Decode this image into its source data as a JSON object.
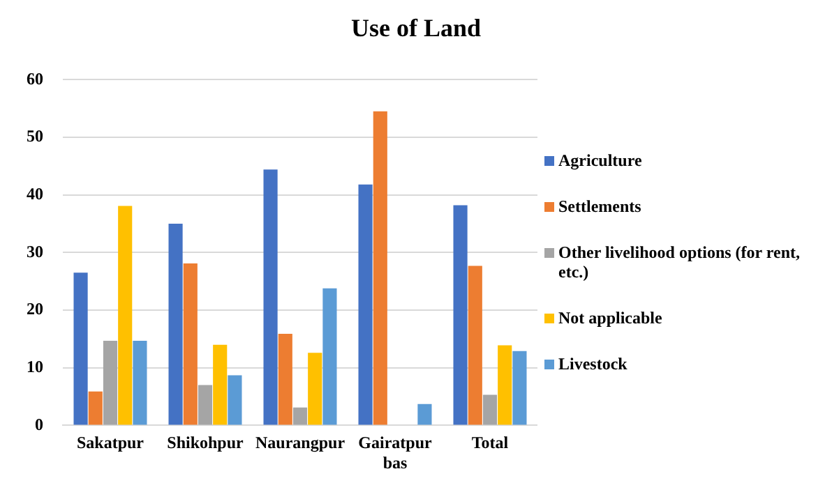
{
  "chart_data": {
    "type": "bar",
    "title": "Use of Land",
    "categories": [
      "Sakatpur",
      "Shikohpur",
      "Naurangpur",
      "Gairatpur bas",
      "Total"
    ],
    "series": [
      {
        "name": "Agriculture",
        "color": "#4472c4",
        "values": [
          26.5,
          35.0,
          44.4,
          41.8,
          38.2
        ]
      },
      {
        "name": "Settlements",
        "color": "#ed7d31",
        "values": [
          5.9,
          28.1,
          15.9,
          54.5,
          27.7
        ]
      },
      {
        "name": "Other livelihood options (for rent, etc.)",
        "color": "#a5a5a5",
        "values": [
          14.7,
          7.0,
          3.1,
          0,
          5.3
        ]
      },
      {
        "name": "Not applicable",
        "color": "#ffc000",
        "values": [
          38.1,
          14.0,
          12.6,
          0,
          13.9
        ]
      },
      {
        "name": "Livestock",
        "color": "#5b9bd5",
        "values": [
          14.7,
          8.7,
          23.8,
          3.7,
          12.9
        ]
      }
    ],
    "ylim": [
      0,
      60
    ],
    "yticks": [
      0,
      10,
      20,
      30,
      40,
      50,
      60
    ],
    "grid": "y",
    "legend": "right"
  }
}
